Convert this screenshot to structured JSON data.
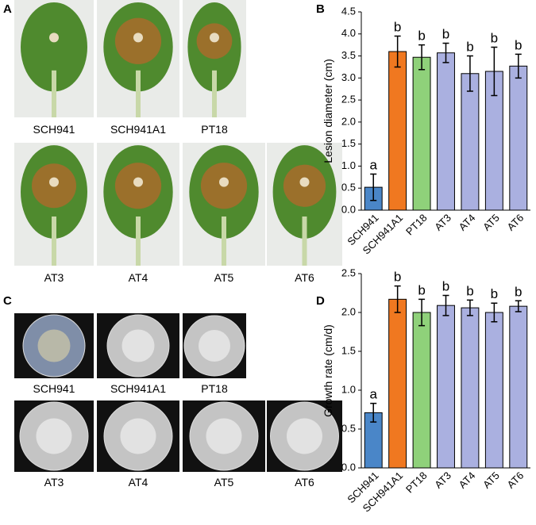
{
  "panel_labels": [
    "A",
    "B",
    "C",
    "D"
  ],
  "photos": {
    "leaves": [
      "SCH941",
      "SCH941A1",
      "PT18",
      "AT3",
      "AT4",
      "AT5",
      "AT6"
    ],
    "plates": [
      "SCH941",
      "SCH941A1",
      "PT18",
      "AT3",
      "AT4",
      "AT5",
      "AT6"
    ]
  },
  "chart_data": [
    {
      "type": "bar",
      "y_label": "Lesion diameter (cm)",
      "categories": [
        "SCH941",
        "SCH941A1",
        "PT18",
        "AT3",
        "AT4",
        "AT5",
        "AT6"
      ],
      "values": [
        0.52,
        3.6,
        3.47,
        3.57,
        3.1,
        3.15,
        3.27
      ],
      "errors": [
        0.3,
        0.35,
        0.28,
        0.22,
        0.4,
        0.55,
        0.27
      ],
      "annotations": [
        "a",
        "b",
        "b",
        "b",
        "b",
        "b",
        "b"
      ],
      "colors": [
        "#4a86c8",
        "#f07820",
        "#8fd17a",
        "#aab0e0",
        "#aab0e0",
        "#aab0e0",
        "#aab0e0"
      ],
      "ylim": [
        0,
        4.5
      ],
      "yticks": [
        {
          "value": 0,
          "label": "0.0"
        },
        0.5,
        {
          "value": 1,
          "label": "1.0"
        },
        1.5,
        {
          "value": 2,
          "label": "2.0"
        },
        2.5,
        {
          "value": 3,
          "label": "3.0"
        },
        3.5,
        {
          "value": 4,
          "label": "4.0"
        },
        4.5
      ]
    },
    {
      "type": "bar",
      "y_label": "Growth rate (cm/d)",
      "categories": [
        "SCH941",
        "SCH941A1",
        "PT18",
        "AT3",
        "AT4",
        "AT5",
        "AT6"
      ],
      "values": [
        0.71,
        2.17,
        2.0,
        2.09,
        2.06,
        2.0,
        2.08
      ],
      "errors": [
        0.12,
        0.17,
        0.17,
        0.13,
        0.1,
        0.12,
        0.07
      ],
      "annotations": [
        "a",
        "b",
        "b",
        "b",
        "b",
        "b",
        "b"
      ],
      "colors": [
        "#4a86c8",
        "#f07820",
        "#8fd17a",
        "#aab0e0",
        "#aab0e0",
        "#aab0e0",
        "#aab0e0"
      ],
      "ylim": [
        0,
        2.5
      ],
      "yticks": [
        {
          "value": 0,
          "label": "0.0"
        },
        0.5,
        {
          "value": 1,
          "label": "1.0"
        },
        1.5,
        {
          "value": 2,
          "label": "2.0"
        },
        2.5
      ]
    }
  ]
}
